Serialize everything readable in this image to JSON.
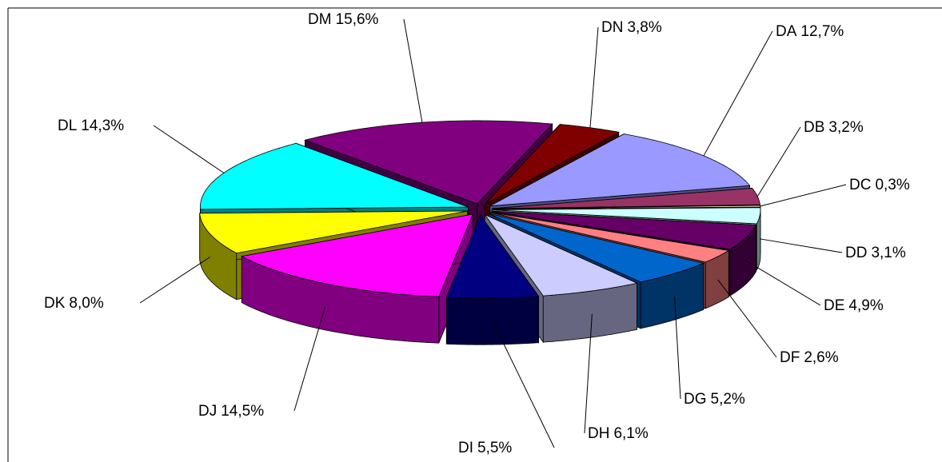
{
  "chart_data": {
    "type": "pie3d",
    "categories": [
      "DA",
      "DB",
      "DC",
      "DD",
      "DE",
      "DF",
      "DG",
      "DH",
      "DI",
      "DJ",
      "DK",
      "DL",
      "DM",
      "DN"
    ],
    "values": [
      12.7,
      3.2,
      0.3,
      3.1,
      4.9,
      2.6,
      5.2,
      6.1,
      5.5,
      14.5,
      8.0,
      14.3,
      15.6,
      3.8
    ],
    "value_labels": [
      "12,7%",
      "3,2%",
      "0,3%",
      "3,1%",
      "4,9%",
      "2,6%",
      "5,2%",
      "6,1%",
      "5,5%",
      "14,5%",
      "8,0%",
      "14,3%",
      "15,6%",
      "3,8%"
    ],
    "colors": [
      "#9999ff",
      "#993366",
      "#ffffcc",
      "#ccffff",
      "#660066",
      "#ff8080",
      "#0066cc",
      "#ccccff",
      "#000080",
      "#ff00ff",
      "#ffff00",
      "#00ffff",
      "#800080",
      "#800000"
    ]
  }
}
